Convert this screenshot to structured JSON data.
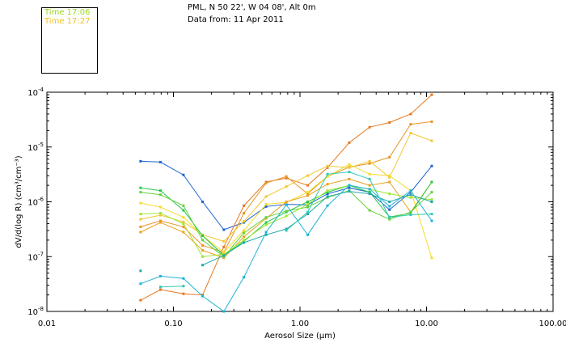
{
  "header": {
    "location": "PML, N 50 22', W 04 08', Alt 0m",
    "date": "Data from: 11 Apr 2011"
  },
  "legend": [
    {
      "label": "Time 17:06",
      "color": "#9ad61e"
    },
    {
      "label": "Time 17:27",
      "color": "#f0c21e"
    }
  ],
  "chart_data": {
    "type": "line",
    "xscale": "log",
    "yscale": "log",
    "xlim": [
      0.01,
      100
    ],
    "ylim": [
      1e-08,
      0.0001
    ],
    "xlabel": "Aerosol Size (µm)",
    "ylabel": "dV/d(log R) (cm³/cm⁻³)",
    "x_tick_labels": [
      "0.01",
      "0.10",
      "1.00",
      "10.00",
      "100.00"
    ],
    "y_tick_labels": [
      {
        "mantissa": "10",
        "exp": "-8"
      },
      {
        "mantissa": "10",
        "exp": "-7"
      },
      {
        "mantissa": "10",
        "exp": "-6"
      },
      {
        "mantissa": "10",
        "exp": "-5"
      },
      {
        "mantissa": "10",
        "exp": "-4"
      }
    ],
    "series": [
      {
        "color": "#1e64d2",
        "x": [
          0.055,
          0.079,
          0.12,
          0.17,
          0.25,
          0.36,
          0.54,
          0.78,
          1.15,
          1.65,
          2.45,
          3.55,
          5.1,
          7.5,
          11.0
        ],
        "y": [
          5.5e-06,
          5.3e-06,
          3.1e-06,
          1e-06,
          3.1e-07,
          4.2e-07,
          8.2e-07,
          9e-07,
          8.8e-07,
          1.4e-06,
          1.8e-06,
          1.5e-06,
          7.2e-07,
          1.5e-06,
          4.5e-06
        ]
      },
      {
        "color": "#e6781e",
        "x": [
          0.055,
          0.079,
          0.12,
          0.17,
          0.25,
          0.36,
          0.54,
          0.78,
          1.15,
          1.65,
          2.45,
          3.55,
          5.1,
          7.5,
          11.0
        ],
        "y": [
          1.6e-08,
          2.5e-08,
          2.1e-08,
          2e-08,
          1.5e-07,
          8.5e-07,
          2.3e-06,
          2.7e-06,
          2e-06,
          4.2e-06,
          1.2e-05,
          2.3e-05,
          2.8e-05,
          4e-05,
          9e-05
        ]
      },
      {
        "color": "#e69628",
        "x": [
          0.055,
          0.079,
          0.12,
          0.17,
          0.25,
          0.36,
          0.54,
          0.78,
          1.15,
          1.65,
          2.45,
          3.55,
          5.1,
          7.5,
          11.0
        ],
        "y": [
          3.5e-07,
          4.5e-07,
          3.5e-07,
          1.6e-07,
          1.2e-07,
          6.2e-07,
          2.2e-06,
          2.9e-06,
          1.4e-06,
          2.9e-06,
          4.3e-06,
          5e-06,
          6.5e-06,
          2.6e-05,
          2.9e-05
        ]
      },
      {
        "color": "#f0c832",
        "x": [
          0.055,
          0.079,
          0.12,
          0.17,
          0.25,
          0.36,
          0.54,
          0.78,
          1.15,
          1.65,
          2.45,
          3.55,
          5.1,
          7.5,
          11.0
        ],
        "y": [
          4.8e-07,
          5.7e-07,
          4.3e-07,
          2.5e-07,
          1.9e-07,
          4.4e-07,
          1.25e-06,
          1.9e-06,
          3e-06,
          4.5e-06,
          4.2e-06,
          5.5e-06,
          2.8e-06,
          1.8e-05,
          1.3e-05
        ]
      },
      {
        "color": "#f5dc28",
        "x": [
          0.055,
          0.079,
          0.12,
          0.17,
          0.25,
          0.36,
          0.54,
          0.78,
          1.15,
          1.65,
          2.45,
          3.55,
          5.1,
          7.5,
          11.0
        ],
        "y": [
          9.5e-07,
          8e-07,
          5.2e-07,
          2.4e-07,
          1.2e-07,
          3e-07,
          9e-07,
          9.8e-07,
          1.5e-06,
          2.9e-06,
          4.8e-06,
          3.2e-06,
          3e-06,
          1.6e-06,
          9.5e-08
        ]
      },
      {
        "color": "#eba01e",
        "x": [
          0.055,
          0.079,
          0.12,
          0.17,
          0.25,
          0.36,
          0.54,
          0.78,
          1.15,
          1.65,
          2.45,
          3.55,
          5.1,
          7.5,
          11.0
        ],
        "y": [
          2.8e-07,
          4.2e-07,
          2.8e-07,
          1.3e-07,
          9.5e-08,
          2.3e-07,
          5e-07,
          1e-06,
          1.3e-06,
          2.1e-06,
          2.6e-06,
          2e-06,
          2.3e-06,
          6.5e-07,
          2.3e-06
        ]
      },
      {
        "color": "#28c846",
        "x": [
          0.055,
          0.079,
          0.12,
          0.17,
          0.25,
          0.36,
          0.54,
          0.78,
          1.15,
          1.65,
          2.45,
          3.55,
          5.1,
          7.5,
          11.0
        ],
        "y": [
          1.8e-06,
          1.6e-06,
          7e-07,
          2.4e-07,
          1.05e-07,
          1.9e-07,
          4.2e-07,
          6.5e-07,
          1e-06,
          1.5e-06,
          2e-06,
          1.5e-06,
          5.3e-07,
          6.2e-07,
          2.3e-06
        ]
      },
      {
        "color": "#64d23c",
        "x": [
          0.055,
          0.079,
          0.12,
          0.17,
          0.25,
          0.36,
          0.54,
          0.78,
          1.15,
          1.65,
          2.45,
          3.55,
          5.1,
          7.5,
          11.0
        ],
        "y": [
          1.5e-06,
          1.35e-06,
          8.5e-07,
          2e-07,
          1e-07,
          2.7e-07,
          5.2e-07,
          6.8e-07,
          8e-07,
          1.2e-06,
          1.6e-06,
          7e-07,
          4.8e-07,
          6.5e-07,
          1.5e-06
        ]
      },
      {
        "color": "#a0e632",
        "x": [
          0.055,
          0.079,
          0.12,
          0.17,
          0.25,
          0.36,
          0.54,
          0.78,
          1.15,
          1.65,
          2.45,
          3.55,
          5.1,
          7.5,
          11.0
        ],
        "y": [
          6e-07,
          6.2e-07,
          4e-07,
          1e-07,
          1.1e-07,
          2e-07,
          3.8e-07,
          5.5e-07,
          9e-07,
          1.6e-06,
          2e-06,
          1.7e-06,
          1.4e-06,
          1.2e-06,
          1.1e-06
        ]
      },
      {
        "color": "#1eaaaa",
        "x": [
          0.055,
          0.079,
          0.12,
          0.17,
          0.25,
          0.36,
          0.54,
          0.78,
          1.15,
          1.65,
          2.45,
          3.55,
          5.1,
          7.5,
          11.0
        ],
        "y": [
          5.5e-08,
          null,
          null,
          7e-08,
          1.05e-07,
          1.8e-07,
          2.5e-07,
          3.2e-07,
          6e-07,
          1.25e-06,
          1.55e-06,
          1.4e-06,
          1e-06,
          1.35e-06,
          1e-06
        ]
      },
      {
        "color": "#1eb4d7",
        "x": [
          0.055,
          0.079,
          0.12,
          0.17,
          0.25,
          0.36,
          0.54,
          0.78,
          1.15,
          1.65,
          2.45,
          3.55,
          5.1,
          7.5,
          11.0
        ],
        "y": [
          3.2e-08,
          4.4e-08,
          4e-08,
          1.9e-08,
          1e-08,
          4.2e-08,
          2.8e-07,
          8.8e-07,
          2.5e-07,
          8.5e-07,
          2e-06,
          1.7e-06,
          8.3e-07,
          1.6e-06,
          4.5e-07
        ]
      },
      {
        "color": "#32c8b4",
        "x": [
          0.055,
          0.079,
          0.12,
          0.17,
          0.25,
          0.36,
          0.54,
          0.78,
          1.15,
          1.65,
          2.45,
          3.55,
          5.1,
          7.5,
          11.0
        ],
        "y": [
          null,
          2.8e-08,
          2.9e-08,
          null,
          null,
          null,
          null,
          3e-07,
          6.5e-07,
          3.2e-06,
          3.5e-06,
          2.6e-06,
          5.2e-07,
          5.8e-07,
          6e-07
        ]
      }
    ]
  }
}
